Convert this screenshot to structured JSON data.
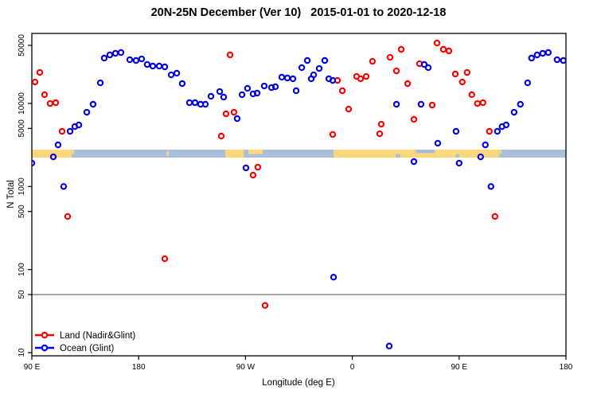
{
  "page_title": "20N-25N December (Ver 10)   2015-01-01 to 2020-12-18",
  "chart_data": {
    "type": "scatter",
    "title": "20N-25N December (Ver 10)   2015-01-01 to 2020-12-18",
    "xlabel": "Longitude (deg E)",
    "ylabel": "N Total",
    "x_axis": {
      "range_deg": [
        90,
        540
      ],
      "wrap_duplicate_max_lon": 180,
      "ticks": [
        {
          "value": 90,
          "label": "90 E"
        },
        {
          "value": 180,
          "label": "180"
        },
        {
          "value": 270,
          "label": "90 W"
        },
        {
          "value": 360,
          "label": "0"
        },
        {
          "value": 450,
          "label": "90 E"
        },
        {
          "value": 540,
          "label": "180"
        }
      ]
    },
    "y_axis": {
      "scale": "log10",
      "range": [
        10,
        50000
      ],
      "ticks": [
        {
          "value": 10,
          "label": "10"
        },
        {
          "value": 50,
          "label": "50"
        },
        {
          "value": 100,
          "label": "100"
        },
        {
          "value": 500,
          "label": "500"
        },
        {
          "value": 1000,
          "label": "1000"
        },
        {
          "value": 5000,
          "label": "5000"
        },
        {
          "value": 10000,
          "label": "10000"
        },
        {
          "value": 50000,
          "label": "50000"
        }
      ]
    },
    "reference_line": {
      "value": 50,
      "color": "#7f7f7f"
    },
    "map_band": {
      "description": "world-map strip of the 20N-25N latitude band drawn across the plot near N=2500",
      "n_center": 2500,
      "ocean_color": "#aabfdc",
      "land_color": "#fcd77e",
      "land_segments": [
        {
          "from": 90.0,
          "to": 123.5,
          "part": "full",
          "region": "south-east-asia"
        },
        {
          "from": 123.8,
          "to": 125.6,
          "part": "top",
          "region": "taiwan"
        },
        {
          "from": 203.5,
          "to": 205.3,
          "part": "mid",
          "region": "hawaii"
        },
        {
          "from": 253.0,
          "to": 268.5,
          "part": "full",
          "region": "mexico"
        },
        {
          "from": 272.5,
          "to": 284.5,
          "part": "top",
          "region": "cuba-caribbean"
        },
        {
          "from": 344.2,
          "to": 396.5,
          "part": "full",
          "region": "north-africa-sahara"
        },
        {
          "from": 396.5,
          "to": 400.5,
          "part": "top",
          "region": "red-sea-coast"
        },
        {
          "from": 400.5,
          "to": 413.5,
          "part": "full",
          "region": "arabia"
        },
        {
          "from": 413.5,
          "to": 429.5,
          "part": "bottom",
          "region": "oman-arabian-sea"
        },
        {
          "from": 429.5,
          "to": 447.0,
          "part": "full",
          "region": "india"
        },
        {
          "from": 447.0,
          "to": 450.4,
          "part": "top",
          "region": "bay-of-bengal-coast"
        }
      ]
    },
    "legend": {
      "position": "bottom-left",
      "items": [
        {
          "label": "Land (Nadir&Glint)",
          "color": "#ff0000"
        },
        {
          "label": "Ocean (Glint)",
          "color": "#0000ee"
        }
      ]
    },
    "series": [
      {
        "name": "Land (Nadir&Glint)",
        "color": "#ff0000",
        "symbol": "open-circle",
        "points": [
          [
            92.7,
            18100
          ],
          [
            96.7,
            23600
          ],
          [
            100.7,
            12740
          ],
          [
            105.4,
            9980
          ],
          [
            110.1,
            10210
          ],
          [
            115.5,
            4615
          ],
          [
            120.2,
            436
          ],
          [
            202.0,
            135
          ],
          [
            249.6,
            4045
          ],
          [
            253.6,
            7500
          ],
          [
            257.0,
            38360
          ],
          [
            260.3,
            7830
          ],
          [
            276.4,
            1371
          ],
          [
            280.4,
            1710
          ],
          [
            286.5,
            37
          ],
          [
            343.5,
            4230
          ],
          [
            347.5,
            18920
          ],
          [
            351.6,
            14220
          ],
          [
            356.9,
            8550
          ],
          [
            363.6,
            21130
          ],
          [
            367.0,
            19810
          ],
          [
            371.7,
            21130
          ],
          [
            377.0,
            32130
          ],
          [
            383.1,
            4315
          ],
          [
            384.4,
            5620
          ],
          [
            391.8,
            35900
          ],
          [
            397.2,
            24660
          ],
          [
            401.2,
            44770
          ],
          [
            406.6,
            17340
          ],
          [
            411.9,
            6430
          ],
          [
            416.6,
            30060
          ],
          [
            427.3,
            9550
          ],
          [
            431.4,
            53400
          ],
          [
            436.7,
            44770
          ],
          [
            441.4,
            42850
          ],
          [
            446.8,
            22600
          ]
        ]
      },
      {
        "name": "Ocean (Glint)",
        "color": "#0000ee",
        "symbol": "open-circle",
        "points": [
          [
            90.0,
            1910
          ],
          [
            108.1,
            2275
          ],
          [
            112.1,
            3170
          ],
          [
            116.8,
            1000
          ],
          [
            122.2,
            4615
          ],
          [
            126.2,
            5260
          ],
          [
            129.6,
            5505
          ],
          [
            136.3,
            7830
          ],
          [
            141.6,
            9770
          ],
          [
            147.7,
            17700
          ],
          [
            151.0,
            35150
          ],
          [
            155.7,
            38360
          ],
          [
            160.4,
            40100
          ],
          [
            165.1,
            41000
          ],
          [
            172.5,
            33600
          ],
          [
            177.8,
            32870
          ],
          [
            182.5,
            34350
          ],
          [
            187.2,
            29450
          ],
          [
            191.9,
            28180
          ],
          [
            197.3,
            28180
          ],
          [
            202.0,
            27560
          ],
          [
            207.4,
            22080
          ],
          [
            212.1,
            23120
          ],
          [
            216.7,
            17340
          ],
          [
            222.8,
            10210
          ],
          [
            227.5,
            10210
          ],
          [
            232.2,
            9770
          ],
          [
            236.2,
            9770
          ],
          [
            240.9,
            12190
          ],
          [
            248.3,
            13900
          ],
          [
            251.6,
            11920
          ],
          [
            263.0,
            6570
          ],
          [
            267.1,
            12740
          ],
          [
            270.4,
            1675
          ],
          [
            271.7,
            15200
          ],
          [
            276.4,
            13030
          ],
          [
            279.8,
            13310
          ],
          [
            285.8,
            16220
          ],
          [
            291.9,
            15520
          ],
          [
            295.2,
            15890
          ],
          [
            300.6,
            20700
          ],
          [
            305.3,
            20230
          ],
          [
            310.0,
            19810
          ],
          [
            312.7,
            14220
          ],
          [
            317.4,
            26980
          ],
          [
            322.1,
            32870
          ],
          [
            325.4,
            19810
          ],
          [
            327.4,
            22080
          ],
          [
            332.1,
            26360
          ],
          [
            336.8,
            32870
          ],
          [
            340.2,
            19810
          ],
          [
            343.5,
            18920
          ],
          [
            344.2,
            81
          ],
          [
            391.1,
            12
          ],
          [
            397.2,
            9770
          ],
          [
            411.9,
            1995
          ],
          [
            417.9,
            9770
          ],
          [
            420.6,
            29450
          ],
          [
            424.0,
            26980
          ],
          [
            432.0,
            3320
          ],
          [
            447.4,
            4615
          ]
        ]
      }
    ]
  }
}
